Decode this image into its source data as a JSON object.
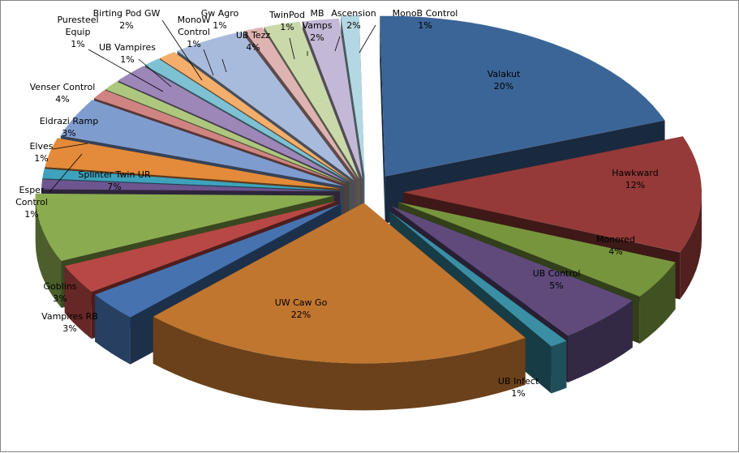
{
  "chart_data": {
    "type": "pie",
    "style": "3d-exploded",
    "title": "",
    "legend": "none",
    "series": [
      {
        "name": "",
        "slices": [
          {
            "label": "Valakut",
            "pct_label": "20%",
            "value": 20,
            "color": "#3b6597"
          },
          {
            "label": "Hawkward",
            "pct_label": "12%",
            "value": 12,
            "color": "#953a38"
          },
          {
            "label": "Monored",
            "pct_label": "4%",
            "value": 4,
            "color": "#77953d"
          },
          {
            "label": "UB Control",
            "pct_label": "5%",
            "value": 5,
            "color": "#5f4a7b"
          },
          {
            "label": "UB Infect",
            "pct_label": "1%",
            "value": 1,
            "color": "#3a8fa4"
          },
          {
            "label": "UW Caw Go",
            "pct_label": "22%",
            "value": 22,
            "color": "#c0762f"
          },
          {
            "label": "Vampires RB",
            "pct_label": "3%",
            "value": 3,
            "color": "#4672b0"
          },
          {
            "label": "Goblins",
            "pct_label": "3%",
            "value": 3,
            "color": "#b84845"
          },
          {
            "label": "Splinter Twin UR",
            "pct_label": "7%",
            "value": 7,
            "color": "#8bab4f"
          },
          {
            "label": "Esper Control",
            "pct_label": "1%",
            "value": 1,
            "color": "#6d5590"
          },
          {
            "label": "Elves",
            "pct_label": "1%",
            "value": 1,
            "color": "#3fa2bc"
          },
          {
            "label": "Eldrazi Ramp",
            "pct_label": "3%",
            "value": 3,
            "color": "#e38b3a"
          },
          {
            "label": "Venser Control",
            "pct_label": "4%",
            "value": 4,
            "color": "#7f9ccf"
          },
          {
            "label": "Puresteel Equip",
            "pct_label": "1%",
            "value": 1,
            "color": "#d08481"
          },
          {
            "label": "UB Vampires",
            "pct_label": "1%",
            "value": 1,
            "color": "#aec77e"
          },
          {
            "label": "Birting Pod GW",
            "pct_label": "2%",
            "value": 2,
            "color": "#9d86b8"
          },
          {
            "label": "MonoW Control",
            "pct_label": "1%",
            "value": 1,
            "color": "#7dc1d3"
          },
          {
            "label": "Gw Agro",
            "pct_label": "1%",
            "value": 1,
            "color": "#f4ae6c"
          },
          {
            "label": "UB Tezz",
            "pct_label": "4%",
            "value": 4,
            "color": "#a9bbdd"
          },
          {
            "label": "TwinPod",
            "pct_label": "1%",
            "value": 1,
            "color": "#dfb3b2"
          },
          {
            "label": "MB Vamps",
            "pct_label": "2%",
            "value": 2,
            "color": "#c9d9aa"
          },
          {
            "label": "Ascension",
            "pct_label": "2%",
            "value": 2,
            "color": "#c4b8d7"
          },
          {
            "label": "MonoB Control",
            "pct_label": "1%",
            "value": 1,
            "color": "#b3d8e3"
          }
        ]
      }
    ]
  }
}
